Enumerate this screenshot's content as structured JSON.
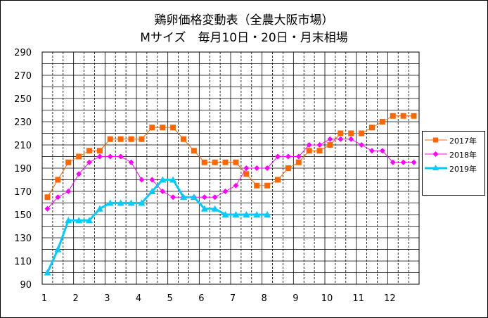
{
  "chart_data": {
    "type": "line",
    "title": "鶏卵価格変動表（全農大阪市場）",
    "subtitle": "Mサイズ　毎月10日・20日・月末相場",
    "x_tick_labels": [
      "1",
      "2",
      "3",
      "4",
      "5",
      "6",
      "7",
      "8",
      "9",
      "10",
      "11",
      "12"
    ],
    "y_ticks": [
      90,
      110,
      130,
      150,
      170,
      190,
      210,
      230,
      250,
      270,
      290
    ],
    "ylim": [
      90,
      290
    ],
    "xlim": [
      0,
      36
    ],
    "grid": true,
    "legend_position": "right",
    "series": [
      {
        "name": "2017年",
        "color": "#ff6600",
        "marker": "square",
        "x": [
          0.5,
          1.5,
          2.5,
          3.5,
          4.5,
          5.5,
          6.5,
          7.5,
          8.5,
          9.5,
          10.5,
          11.5,
          12.5,
          13.5,
          14.5,
          15.5,
          16.5,
          17.5,
          18.5,
          19.5,
          20.5,
          21.5,
          22.5,
          23.5,
          24.5,
          25.5,
          26.5,
          27.5,
          28.5,
          29.5,
          30.5,
          31.5,
          32.5,
          33.5,
          34.5,
          35.5
        ],
        "values": [
          165,
          180,
          195,
          200,
          205,
          205,
          215,
          215,
          215,
          215,
          225,
          225,
          225,
          215,
          205,
          195,
          195,
          195,
          195,
          185,
          175,
          175,
          180,
          190,
          195,
          205,
          205,
          210,
          220,
          220,
          220,
          225,
          230,
          235,
          235,
          235
        ]
      },
      {
        "name": "2018年",
        "color": "#ff00ff",
        "marker": "diamond",
        "x": [
          0.5,
          1.5,
          2.5,
          3.5,
          4.5,
          5.5,
          6.5,
          7.5,
          8.5,
          9.5,
          10.5,
          11.5,
          12.5,
          13.5,
          14.5,
          15.5,
          16.5,
          17.5,
          18.5,
          19.5,
          20.5,
          21.5,
          22.5,
          23.5,
          24.5,
          25.5,
          26.5,
          27.5,
          28.5,
          29.5,
          30.5,
          31.5,
          32.5,
          33.5,
          34.5,
          35.5
        ],
        "values": [
          155,
          165,
          170,
          185,
          195,
          200,
          200,
          200,
          195,
          180,
          180,
          170,
          165,
          165,
          165,
          165,
          165,
          170,
          175,
          190,
          190,
          190,
          200,
          200,
          200,
          210,
          210,
          215,
          215,
          215,
          210,
          205,
          205,
          195,
          195,
          195
        ]
      },
      {
        "name": "2019年",
        "color": "#00ccff",
        "marker": "triangle",
        "x": [
          0.5,
          1.5,
          2.5,
          3.5,
          4.5,
          5.5,
          6.5,
          7.5,
          8.5,
          9.5,
          10.5,
          11.5,
          12.5,
          13.5,
          14.5,
          15.5,
          16.5,
          17.5,
          18.5,
          19.5,
          20.5,
          21.5
        ],
        "values": [
          100,
          120,
          145,
          145,
          145,
          155,
          160,
          160,
          160,
          160,
          170,
          180,
          180,
          165,
          165,
          155,
          155,
          150,
          150,
          150,
          150,
          150
        ]
      }
    ]
  }
}
